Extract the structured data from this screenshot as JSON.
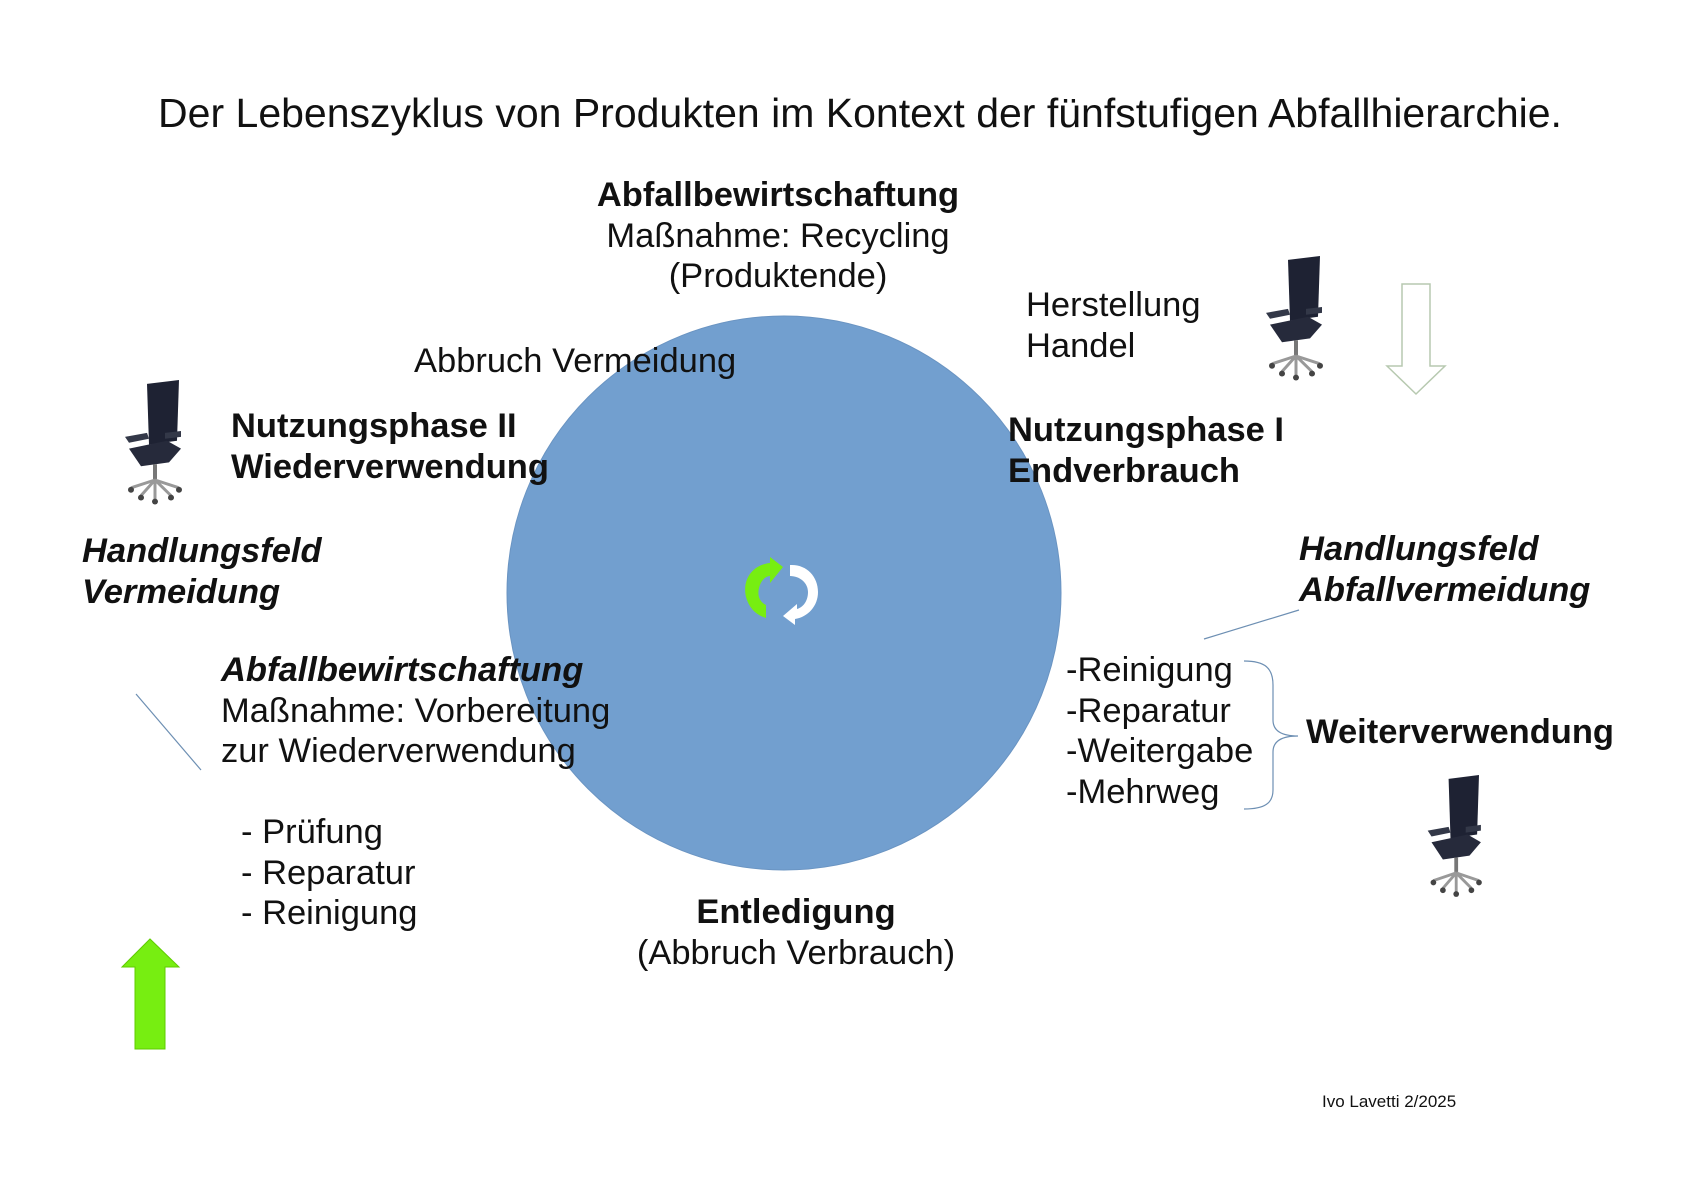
{
  "title": "Der Lebenszyklus von Produkten im Kontext der fünfstufigen Abfallhierarchie.",
  "colors": {
    "circle": "#729fcf",
    "green_arrow": "#77ee11",
    "line": "#6d8fb3"
  },
  "top": {
    "heading": "Abfallbewirtschaftung",
    "line1": "Maßnahme: Recycling",
    "line2": "(Produktende)"
  },
  "abbruch_vermeidung": "Abbruch Vermeidung",
  "herstellung": {
    "line1": "Herstellung",
    "line2": "Handel"
  },
  "nutzung2": {
    "line1": "Nutzungsphase II",
    "line2": "Wiederverwendung"
  },
  "nutzung1": {
    "line1": "Nutzungsphase I",
    "line2": "Endverbrauch"
  },
  "feld_left": {
    "line1": "Handlungsfeld",
    "line2": "Vermeidung"
  },
  "feld_right": {
    "line1": "Handlungsfeld",
    "line2": "Abfallvermeidung"
  },
  "left_mgmt": {
    "heading": "Abfallbewirtschaftung",
    "line1": "Maßnahme: Vorbereitung",
    "line2": "zur Wiederverwendung",
    "items": [
      "- Prüfung",
      "- Reparatur",
      "- Reinigung"
    ]
  },
  "right_list": [
    "-Reinigung",
    "-Reparatur",
    "-Weitergabe",
    "-Mehrweg"
  ],
  "weiterverwendung": "Weiterverwendung",
  "bottom": {
    "heading": "Entledigung",
    "line1": "(Abbruch Verbrauch)"
  },
  "icons": {
    "center": "recycle-arrows-icon",
    "chair": "office-chair-icon",
    "down": "arrow-down-outline-icon",
    "up": "arrow-up-green-icon"
  },
  "footer": "Ivo Lavetti 2/2025"
}
